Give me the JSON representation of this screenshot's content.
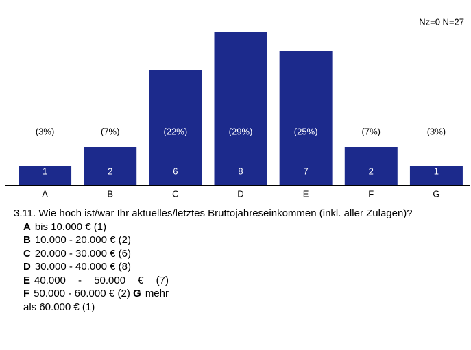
{
  "chart_data": {
    "type": "bar",
    "annotation": "Nz=0  N=27",
    "categories": [
      "A",
      "B",
      "C",
      "D",
      "E",
      "F",
      "G"
    ],
    "values": [
      1,
      2,
      6,
      8,
      7,
      2,
      1
    ],
    "percentages": [
      3,
      7,
      22,
      29,
      25,
      7,
      3
    ],
    "percentage_labels": [
      "(3%)",
      "(7%)",
      "(22%)",
      "(29%)",
      "(25%)",
      "(7%)",
      "(3%)"
    ],
    "color": "#1c2a8c",
    "question": "3.11. Wie hoch ist/war Ihr aktuelles/letztes Bruttojahreseinkommen (inkl. aller Zulagen)?",
    "legend_items": [
      {
        "letter": "A",
        "text": "bis 10.000 € (1)"
      },
      {
        "letter": "B",
        "text": "10.000 - 20.000 € (2)"
      },
      {
        "letter": "C",
        "text": "20.000 - 30.000 € (6)"
      },
      {
        "letter": "D",
        "text": "30.000 - 40.000 € (8)"
      },
      {
        "letter": "E",
        "text": "40.000 - 50.000 € (7)"
      },
      {
        "letter": "F",
        "text": "50.000 - 60.000 € (2)"
      },
      {
        "letter": "G",
        "text": "mehr als 60.000 € (1)"
      }
    ]
  }
}
